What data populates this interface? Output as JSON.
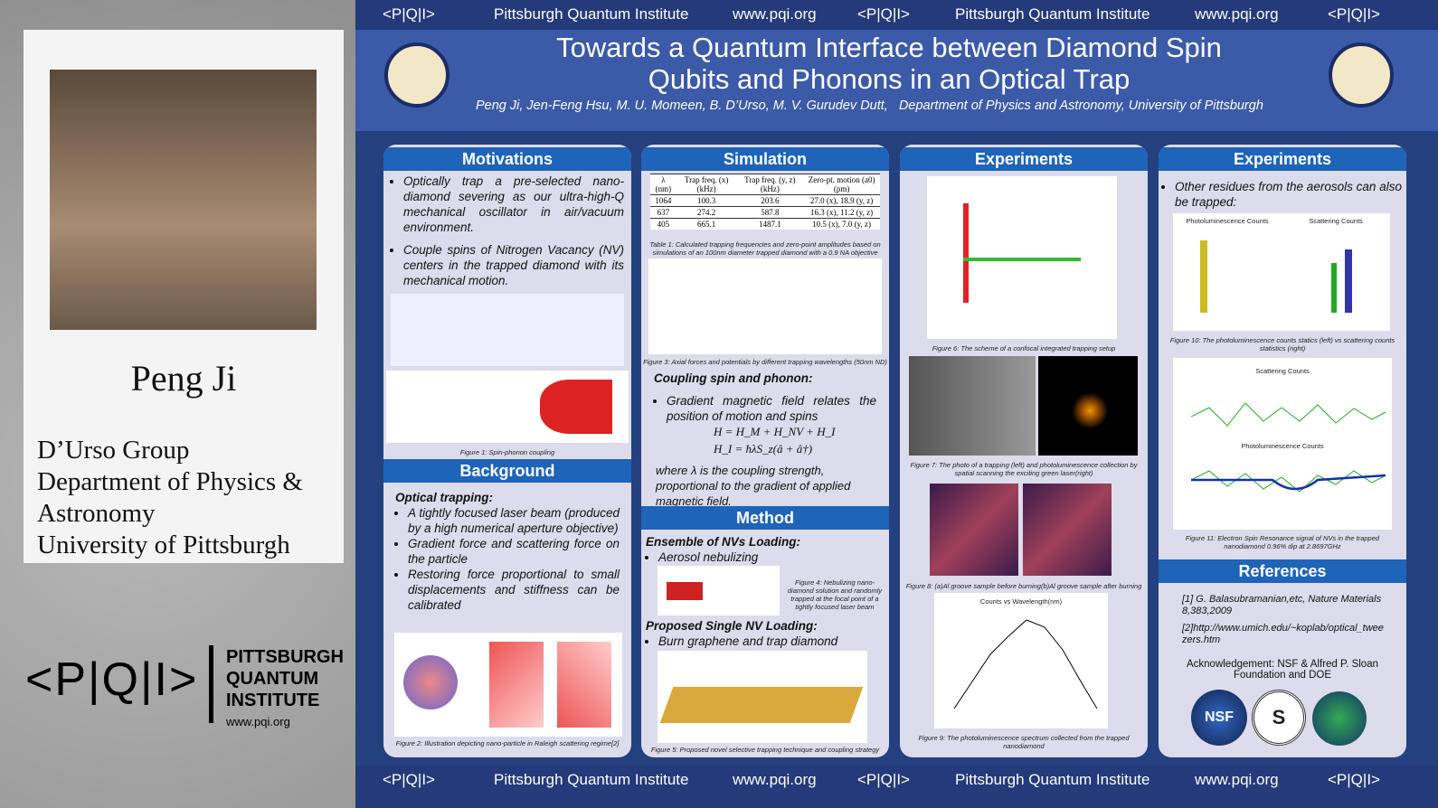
{
  "strip": {
    "logo": "<P|Q|I>",
    "institute": "Pittsburgh Quantum Institute",
    "url": "www.pqi.org"
  },
  "presenter": {
    "name": "Peng Ji",
    "lines": [
      "D’Urso Group",
      "Department of Physics &",
      "Astronomy",
      "University of Pittsburgh"
    ]
  },
  "pqi_logo": {
    "mark": "<P|Q|I>",
    "name": [
      "PITTSBURGH",
      "QUANTUM",
      "INSTITUTE"
    ],
    "url": "www.pqi.org"
  },
  "header": {
    "title": [
      "Towards a Quantum Interface between Diamond Spin",
      "Qubits and Phonons in an Optical Trap"
    ],
    "authors": "Peng Ji, Jen-Feng Hsu, M. U. Momeen, B. D’Urso, M. V. Gurudev Dutt,",
    "affiliation": "Department of Physics and Astronomy, University of Pittsburgh"
  },
  "motivations": {
    "heading": "Motivations",
    "bullets": [
      "Optically trap a pre-selected nano-diamond severing as our ultra-high-Q mechanical oscillator in air/vacuum environment.",
      "Couple spins of Nitrogen Vacancy (NV) centers in the trapped diamond with its mechanical motion."
    ],
    "fig_caption": "Figure 1: Spin-phonon coupling"
  },
  "background": {
    "heading": "Background",
    "subheading": "Optical trapping:",
    "bullets": [
      "A tightly focused laser beam (produced by a high numerical aperture objective)",
      "Gradient force and scattering force on the particle",
      "Restoring force proportional to small displacements and stiffness can be calibrated"
    ],
    "fig_caption": "Figure 2: Illustration depicting nano-particle in Raleigh scattering regime[2]"
  },
  "simulation": {
    "heading": "Simulation",
    "table": {
      "header": [
        "λ (nm)",
        "Trap freq. (x) (kHz)",
        "Trap freq. (y, z) (kHz)",
        "Zero-pt. motion (a0) (pm)"
      ],
      "rows": [
        [
          "1064",
          "100.3",
          "203.6",
          "27.0 (x), 18.9 (y, z)"
        ],
        [
          "637",
          "274.2",
          "587.8",
          "16.3 (x), 11.2 (y, z)"
        ],
        [
          "405",
          "665.1",
          "1487.1",
          "10.5 (x), 7.0 (y, z)"
        ]
      ]
    },
    "table_caption": "Table 1: Calculated trapping frequencies and zero-point amplitudes based on simulations of an 100nm diameter trapped diamond with a 0.9 NA objective",
    "fig_caption": "Figure 3: Axial forces and potentials by different trapping wavelengths (50nm ND)",
    "subheading": "Coupling spin and phonon:",
    "bullet": "Gradient magnetic field relates the position of motion and spins",
    "formulas": [
      "H = H_M + H_NV + H_I",
      "H_I = ħλS_z(â + â†)"
    ],
    "note": "where λ is the coupling strength, proportional to the gradient of applied magnetic field."
  },
  "method": {
    "heading": "Method",
    "sub1": "Ensemble of NVs Loading:",
    "bullet1": "Aerosol nebulizing",
    "fig4_caption": "Figure 4: Nebulizing nano-diamond solution and randomly trapped at the focal point of a tightly focused laser beam",
    "sub2": "Proposed Single NV Loading:",
    "bullet2": "Burn graphene and trap diamond",
    "fig5_caption": "Figure 5: Proposed novel selective trapping technique and coupling strategy"
  },
  "experiments1": {
    "heading": "Experiments",
    "fig6_caption": "Figure 6: The scheme of a confocal integrated trapping setup",
    "fig7_caption": "Figure 7: The photo of a trapping (left) and photoluminescence collection by spatial scanning the exciting green laser(right)",
    "fig8_caption": "Figure 8: (a)Al groove sample before burning(b)Al groove sample after burning",
    "fig9_title": "Counts vs Wavelength(nm)",
    "fig9_caption": "Figure 9: The photoluminescence spectrum collected from the trapped nanodiamond"
  },
  "experiments2": {
    "heading": "Experiments",
    "bullet": "Other residues from the aerosols can also be trapped:",
    "fig10_titles": [
      "Photoluminescence Counts",
      "Scattering Counts"
    ],
    "fig10_caption": "Figure 10: The photoluminescence counts statics (left) vs scattering counts statistics (right)",
    "fig11_titles": [
      "Scattering Counts",
      "Photoluminescence Counts"
    ],
    "fig11_caption": "Figure 11: Electron Spin Resonance signal of NVs in the trapped nanodiamond 0.96% dip at 2.8697GHz"
  },
  "references": {
    "heading": "References",
    "items": [
      "[1] G. Balasubramanian,etc, Nature Materials 8,383,2009",
      "[2]http://www.umich.edu/~koplab/optical_tweezers.htm"
    ],
    "acknowledgement": "Acknowledgement: NSF & Alfred P. Sloan Foundation and DOE",
    "logos": [
      "NSF",
      "S"
    ]
  }
}
